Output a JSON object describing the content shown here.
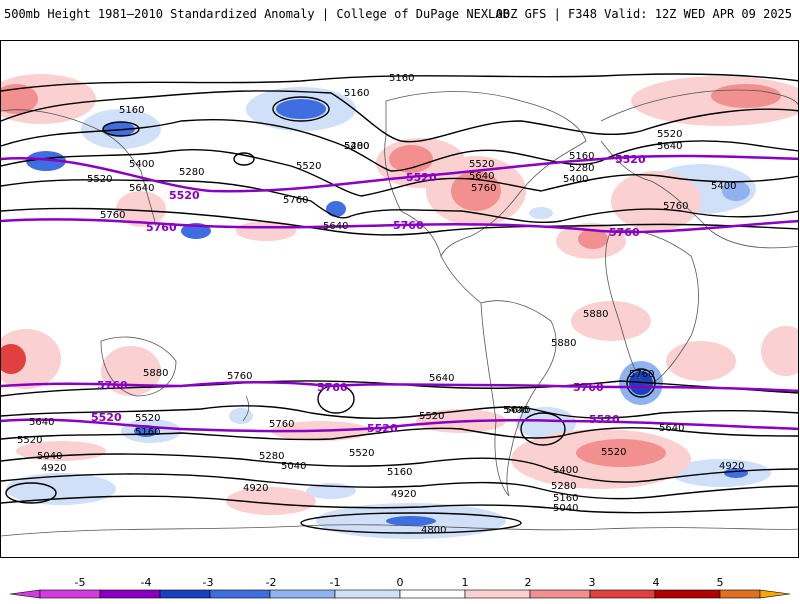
{
  "header": {
    "title_left": "500mb Height 1981–2010 Standardized Anomaly | College of DuPage NEXLAB",
    "title_right": "00Z GFS | F348 Valid: 12Z WED APR 09 2025"
  },
  "colorbar": {
    "ticks": [
      "-5",
      "-4",
      "-3",
      "-2",
      "-1",
      "0",
      "1",
      "2",
      "3",
      "4",
      "5"
    ],
    "colors": [
      "#d23be0",
      "#8a00c2",
      "#1a3fc0",
      "#3f6ee0",
      "#8fb3f0",
      "#cfe0f8",
      "#ffffff",
      "#fbd0d0",
      "#f29090",
      "#e04040",
      "#b00000",
      "#e07020",
      "#f5a800"
    ]
  },
  "map": {
    "reference_contours": {
      "color": "#8a00c2",
      "labels": [
        "5520",
        "5760"
      ]
    },
    "height_labels": [
      "5160",
      "5160",
      "5160",
      "5280",
      "5400",
      "5520",
      "5400",
      "5520",
      "5640",
      "5280",
      "5520",
      "5760",
      "5640",
      "5640",
      "5760",
      "5520",
      "5280",
      "5160",
      "5400",
      "5520",
      "5640",
      "5400",
      "5760",
      "5880",
      "5880",
      "5880",
      "5760",
      "5760",
      "5640",
      "5760",
      "5400",
      "5520",
      "5160",
      "5040",
      "4920",
      "5280",
      "5040",
      "4920",
      "5160",
      "5400",
      "5640",
      "5520",
      "5400",
      "5280",
      "5160",
      "5040",
      "4920",
      "4800",
      "5640",
      "5640",
      "5760",
      "5520",
      "5640"
    ]
  }
}
